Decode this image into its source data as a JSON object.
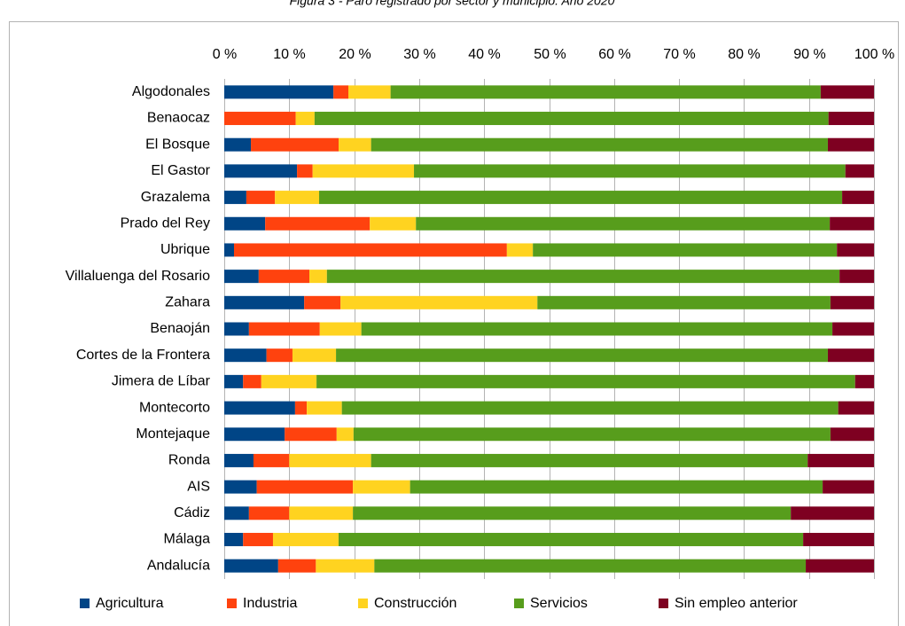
{
  "chart_data": {
    "type": "stacked_bar_horizontal",
    "title": "Figura 3 - Paro registrado por sector y municipio. Año 2020",
    "categories": [
      "Algodonales",
      "Benaocaz",
      "El Bosque",
      "El Gastor",
      "Grazalema",
      "Prado del Rey",
      "Ubrique",
      "Villaluenga del Rosario",
      "Zahara",
      "Benaoján",
      "Cortes de la Frontera",
      "Jimera de Líbar",
      "Montecorto",
      "Montejaque",
      "Ronda",
      "AIS",
      "Cádiz",
      "Málaga",
      "Andalucía"
    ],
    "series": [
      {
        "name": "Agricultura",
        "color": "#004586",
        "values": [
          16.8,
          0,
          4.1,
          11.2,
          3.4,
          6.3,
          1.5,
          5.3,
          12.3,
          3.8,
          6.5,
          2.9,
          10.9,
          9.3,
          4.5,
          5.0,
          3.8,
          2.9,
          8.3
        ]
      },
      {
        "name": "Industria",
        "color": "#ff420e",
        "values": [
          2.3,
          11.0,
          13.5,
          2.4,
          4.4,
          16.1,
          42.0,
          7.8,
          5.6,
          10.9,
          4.0,
          2.8,
          1.8,
          8.0,
          5.5,
          14.8,
          6.2,
          4.6,
          5.8
        ]
      },
      {
        "name": "Construcción",
        "color": "#ffd320",
        "values": [
          6.5,
          2.9,
          5.0,
          15.6,
          6.8,
          7.1,
          4.0,
          2.7,
          30.3,
          6.4,
          6.7,
          8.5,
          5.4,
          2.6,
          12.6,
          8.8,
          9.8,
          10.1,
          9.0
        ]
      },
      {
        "name": "Servicios",
        "color": "#579d1c",
        "values": [
          66.2,
          79.1,
          70.3,
          66.4,
          80.5,
          63.7,
          46.8,
          78.9,
          45.1,
          72.5,
          75.7,
          82.9,
          76.4,
          73.4,
          67.2,
          63.5,
          67.4,
          71.5,
          66.4
        ]
      },
      {
        "name": "Sin empleo anterior",
        "color": "#7e0021",
        "values": [
          8.2,
          7.0,
          7.1,
          4.4,
          4.9,
          6.8,
          5.7,
          5.3,
          6.7,
          6.4,
          7.1,
          2.9,
          5.5,
          6.7,
          10.2,
          7.9,
          12.8,
          10.9,
          10.5
        ]
      }
    ],
    "xlim": [
      0,
      100
    ],
    "xticks": [
      {
        "value": 0,
        "label": "0 %"
      },
      {
        "value": 10,
        "label": "10 %"
      },
      {
        "value": 20,
        "label": "20 %"
      },
      {
        "value": 30,
        "label": "30 %"
      },
      {
        "value": 40,
        "label": "40 %"
      },
      {
        "value": 50,
        "label": "50 %"
      },
      {
        "value": 60,
        "label": "60 %"
      },
      {
        "value": 70,
        "label": "70 %"
      },
      {
        "value": 80,
        "label": "80 %"
      },
      {
        "value": 90,
        "label": "90 %"
      },
      {
        "value": 100,
        "label": "100 %"
      }
    ],
    "grid": true,
    "legend": "bottom"
  }
}
